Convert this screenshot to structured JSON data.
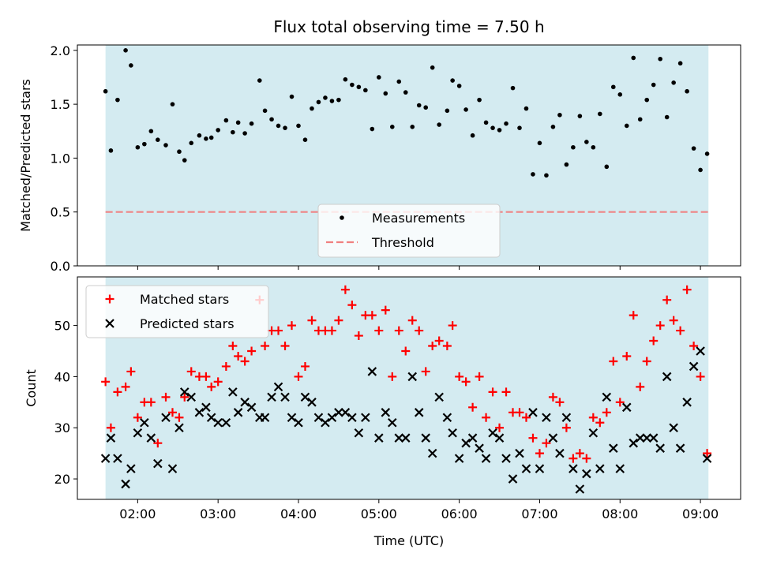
{
  "chart_data": [
    {
      "type": "scatter",
      "title": "Flux total observing time = 7.50 h",
      "ylabel": "Matched/Predicted stars",
      "xlabel": "",
      "xlim": [
        "01:15",
        "09:30"
      ],
      "ylim": [
        0,
        2.05
      ],
      "yticks": [
        "0.0",
        "0.5",
        "1.0",
        "1.5",
        "2.0"
      ],
      "observing_window": [
        "01:36",
        "09:06"
      ],
      "window_color": "#d4ebf1",
      "legend_loc": "lower-center",
      "series": [
        {
          "name": "Measurements",
          "marker": "dot",
          "color": "#000000",
          "x": [
            "01:36",
            "01:40",
            "01:45",
            "01:51",
            "01:55",
            "02:00",
            "02:05",
            "02:10",
            "02:15",
            "02:21",
            "02:26",
            "02:31",
            "02:35",
            "02:40",
            "02:46",
            "02:51",
            "02:55",
            "03:00",
            "03:06",
            "03:11",
            "03:15",
            "03:20",
            "03:25",
            "03:31",
            "03:35",
            "03:40",
            "03:45",
            "03:50",
            "03:55",
            "04:00",
            "04:05",
            "04:10",
            "04:15",
            "04:20",
            "04:25",
            "04:30",
            "04:35",
            "04:40",
            "04:45",
            "04:50",
            "04:55",
            "05:00",
            "05:05",
            "05:10",
            "05:15",
            "05:20",
            "05:25",
            "05:30",
            "05:35",
            "05:40",
            "05:45",
            "05:51",
            "05:55",
            "06:00",
            "06:05",
            "06:10",
            "06:15",
            "06:20",
            "06:25",
            "06:30",
            "06:35",
            "06:40",
            "06:45",
            "06:50",
            "06:55",
            "07:00",
            "07:05",
            "07:10",
            "07:15",
            "07:20",
            "07:25",
            "07:30",
            "07:35",
            "07:40",
            "07:45",
            "07:50",
            "07:55",
            "08:00",
            "08:05",
            "08:10",
            "08:15",
            "08:20",
            "08:25",
            "08:30",
            "08:35",
            "08:40",
            "08:45",
            "08:50",
            "08:55",
            "09:00",
            "09:05"
          ],
          "y": [
            1.62,
            1.07,
            1.54,
            2.0,
            1.86,
            1.1,
            1.13,
            1.25,
            1.17,
            1.12,
            1.5,
            1.06,
            0.98,
            1.14,
            1.21,
            1.18,
            1.19,
            1.26,
            1.35,
            1.24,
            1.33,
            1.23,
            1.32,
            1.72,
            1.44,
            1.36,
            1.3,
            1.28,
            1.57,
            1.3,
            1.17,
            1.46,
            1.52,
            1.56,
            1.53,
            1.54,
            1.73,
            1.68,
            1.66,
            1.63,
            1.27,
            1.75,
            1.6,
            1.29,
            1.71,
            1.61,
            1.29,
            1.49,
            1.47,
            1.84,
            1.31,
            1.44,
            1.72,
            1.67,
            1.45,
            1.21,
            1.54,
            1.33,
            1.28,
            1.26,
            1.32,
            1.65,
            1.28,
            1.46,
            0.85,
            1.14,
            0.84,
            1.29,
            1.4,
            0.94,
            1.1,
            1.39,
            1.15,
            1.1,
            1.41,
            0.92,
            1.66,
            1.59,
            1.3,
            1.93,
            1.36,
            1.54,
            1.68,
            1.92,
            1.38,
            1.7,
            1.88,
            1.62,
            1.09,
            0.89,
            1.04
          ]
        },
        {
          "name": "Threshold",
          "marker": "dashed-line",
          "color": "#f08080",
          "x": [
            "01:36",
            "09:06"
          ],
          "y": [
            0.5,
            0.5
          ]
        }
      ]
    },
    {
      "type": "scatter",
      "title": "",
      "xlabel": "Time (UTC)",
      "ylabel": "Count",
      "xlim": [
        "01:15",
        "09:30"
      ],
      "xticks": [
        "02:00",
        "03:00",
        "04:00",
        "05:00",
        "06:00",
        "07:00",
        "08:00",
        "09:00"
      ],
      "ylim": [
        16,
        59.5
      ],
      "yticks": [
        "20",
        "30",
        "40",
        "50"
      ],
      "observing_window": [
        "01:36",
        "09:06"
      ],
      "window_color": "#d4ebf1",
      "legend_loc": "upper-left",
      "series": [
        {
          "name": "Matched stars",
          "marker": "plus",
          "color": "#ff0000",
          "x": [
            "01:36",
            "01:40",
            "01:45",
            "01:51",
            "01:55",
            "02:00",
            "02:05",
            "02:10",
            "02:15",
            "02:21",
            "02:26",
            "02:31",
            "02:35",
            "02:40",
            "02:46",
            "02:51",
            "02:55",
            "03:00",
            "03:06",
            "03:11",
            "03:15",
            "03:20",
            "03:25",
            "03:31",
            "03:35",
            "03:40",
            "03:45",
            "03:50",
            "03:55",
            "04:00",
            "04:05",
            "04:10",
            "04:15",
            "04:20",
            "04:25",
            "04:30",
            "04:35",
            "04:40",
            "04:45",
            "04:50",
            "04:55",
            "05:00",
            "05:05",
            "05:10",
            "05:15",
            "05:20",
            "05:25",
            "05:30",
            "05:35",
            "05:40",
            "05:45",
            "05:51",
            "05:55",
            "06:00",
            "06:05",
            "06:10",
            "06:15",
            "06:20",
            "06:25",
            "06:30",
            "06:35",
            "06:40",
            "06:45",
            "06:50",
            "06:55",
            "07:00",
            "07:05",
            "07:10",
            "07:15",
            "07:20",
            "07:25",
            "07:30",
            "07:35",
            "07:40",
            "07:45",
            "07:50",
            "07:55",
            "08:00",
            "08:05",
            "08:10",
            "08:15",
            "08:20",
            "08:25",
            "08:30",
            "08:35",
            "08:40",
            "08:45",
            "08:50",
            "08:55",
            "09:00",
            "09:05"
          ],
          "y": [
            39,
            30,
            37,
            38,
            41,
            32,
            35,
            35,
            27,
            36,
            33,
            32,
            36,
            41,
            40,
            40,
            38,
            39,
            42,
            46,
            44,
            43,
            45,
            55,
            46,
            49,
            49,
            46,
            50,
            40,
            42,
            51,
            49,
            49,
            49,
            51,
            57,
            54,
            48,
            52,
            52,
            49,
            53,
            40,
            49,
            45,
            51,
            49,
            41,
            46,
            47,
            46,
            50,
            40,
            39,
            34,
            40,
            32,
            37,
            30,
            37,
            33,
            33,
            32,
            28,
            25,
            27,
            36,
            35,
            30,
            24,
            25,
            24,
            32,
            31,
            33,
            43,
            35,
            44,
            52,
            38,
            43,
            47,
            50,
            55,
            51,
            49,
            57,
            46,
            40,
            25
          ]
        },
        {
          "name": "Predicted stars",
          "marker": "x",
          "color": "#000000",
          "x": [
            "01:36",
            "01:40",
            "01:45",
            "01:51",
            "01:55",
            "02:00",
            "02:05",
            "02:10",
            "02:15",
            "02:21",
            "02:26",
            "02:31",
            "02:35",
            "02:40",
            "02:46",
            "02:51",
            "02:55",
            "03:00",
            "03:06",
            "03:11",
            "03:15",
            "03:20",
            "03:25",
            "03:31",
            "03:35",
            "03:40",
            "03:45",
            "03:50",
            "03:55",
            "04:00",
            "04:05",
            "04:10",
            "04:15",
            "04:20",
            "04:25",
            "04:30",
            "04:35",
            "04:40",
            "04:45",
            "04:50",
            "04:55",
            "05:00",
            "05:05",
            "05:10",
            "05:15",
            "05:20",
            "05:25",
            "05:30",
            "05:35",
            "05:40",
            "05:45",
            "05:51",
            "05:55",
            "06:00",
            "06:05",
            "06:10",
            "06:15",
            "06:20",
            "06:25",
            "06:30",
            "06:35",
            "06:40",
            "06:45",
            "06:50",
            "06:55",
            "07:00",
            "07:05",
            "07:10",
            "07:15",
            "07:20",
            "07:25",
            "07:30",
            "07:35",
            "07:40",
            "07:45",
            "07:50",
            "07:55",
            "08:00",
            "08:05",
            "08:10",
            "08:15",
            "08:20",
            "08:25",
            "08:30",
            "08:35",
            "08:40",
            "08:45",
            "08:50",
            "08:55",
            "09:00",
            "09:05"
          ],
          "y": [
            24,
            28,
            24,
            19,
            22,
            29,
            31,
            28,
            23,
            32,
            22,
            30,
            37,
            36,
            33,
            34,
            32,
            31,
            31,
            37,
            33,
            35,
            34,
            32,
            32,
            36,
            38,
            36,
            32,
            31,
            36,
            35,
            32,
            31,
            32,
            33,
            33,
            32,
            29,
            32,
            41,
            28,
            33,
            31,
            28,
            28,
            40,
            33,
            28,
            25,
            36,
            32,
            29,
            24,
            27,
            28,
            26,
            24,
            29,
            28,
            24,
            20,
            25,
            22,
            33,
            22,
            32,
            28,
            25,
            32,
            22,
            18,
            21,
            29,
            22,
            36,
            26,
            22,
            34,
            27,
            28,
            28,
            28,
            26,
            40,
            30,
            26,
            35,
            42,
            45,
            24
          ]
        }
      ]
    }
  ]
}
